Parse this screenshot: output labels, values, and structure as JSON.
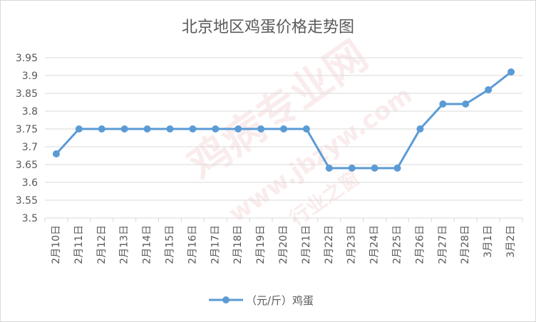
{
  "chart_data": {
    "type": "line",
    "title": "北京地区鸡蛋价格走势图",
    "xlabel": "",
    "ylabel": "",
    "categories": [
      "2月10日",
      "2月11日",
      "2月12日",
      "2月13日",
      "2月14日",
      "2月15日",
      "2月16日",
      "2月17日",
      "2月18日",
      "2月19日",
      "2月20日",
      "2月21日",
      "2月22日",
      "2月23日",
      "2月24日",
      "2月25日",
      "2月26日",
      "2月27日",
      "2月28日",
      "3月1日",
      "3月2日"
    ],
    "series": [
      {
        "name": "（元/斤）鸡蛋",
        "values": [
          3.68,
          3.75,
          3.75,
          3.75,
          3.75,
          3.75,
          3.75,
          3.75,
          3.75,
          3.75,
          3.75,
          3.75,
          3.64,
          3.64,
          3.64,
          3.64,
          3.75,
          3.82,
          3.82,
          3.86,
          3.91
        ]
      }
    ],
    "ylim": [
      3.5,
      3.95
    ],
    "yticks": [
      "3.5",
      "3.55",
      "3.6",
      "3.65",
      "3.7",
      "3.75",
      "3.8",
      "3.85",
      "3.9",
      "3.95"
    ],
    "grid": true,
    "legend_position": "bottom",
    "colors": {
      "line": "#5b9bd5",
      "grid": "#d9d9d9",
      "text": "#595959"
    }
  },
  "watermark": {
    "line1": "鸡病专业网",
    "line2": "www.jbzyw.com",
    "line3": "行业之窗"
  }
}
